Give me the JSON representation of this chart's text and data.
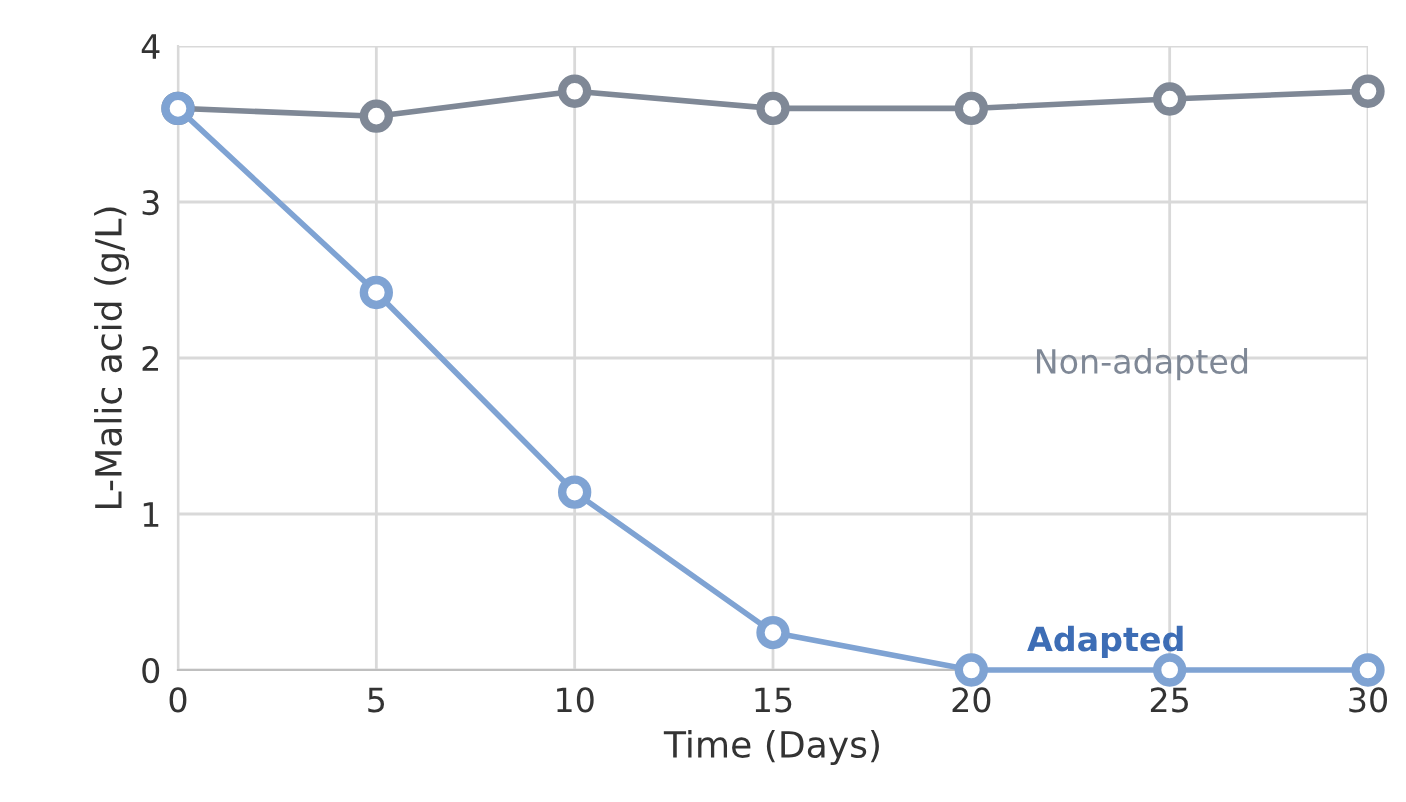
{
  "chart_data": {
    "type": "line",
    "xlabel": "Time (Days)",
    "ylabel": "L-Malic acid (g/L)",
    "x": [
      0,
      5,
      10,
      15,
      20,
      25,
      30
    ],
    "series": [
      {
        "name": "Non-adapted",
        "color": "#7f8896",
        "values": [
          3.6,
          3.55,
          3.71,
          3.6,
          3.6,
          3.66,
          3.71
        ]
      },
      {
        "name": "Adapted",
        "color": "#7fa3d3",
        "values": [
          3.6,
          2.42,
          1.14,
          0.24,
          0,
          0,
          0
        ]
      }
    ],
    "xlim": [
      0,
      30
    ],
    "xticks": [
      0,
      5,
      10,
      15,
      20,
      25,
      30
    ],
    "ylim": [
      0,
      4
    ],
    "yticks": [
      0,
      1,
      2,
      3,
      4
    ],
    "grid": true,
    "marker": "circle",
    "line_style": "solid",
    "legend": false
  }
}
